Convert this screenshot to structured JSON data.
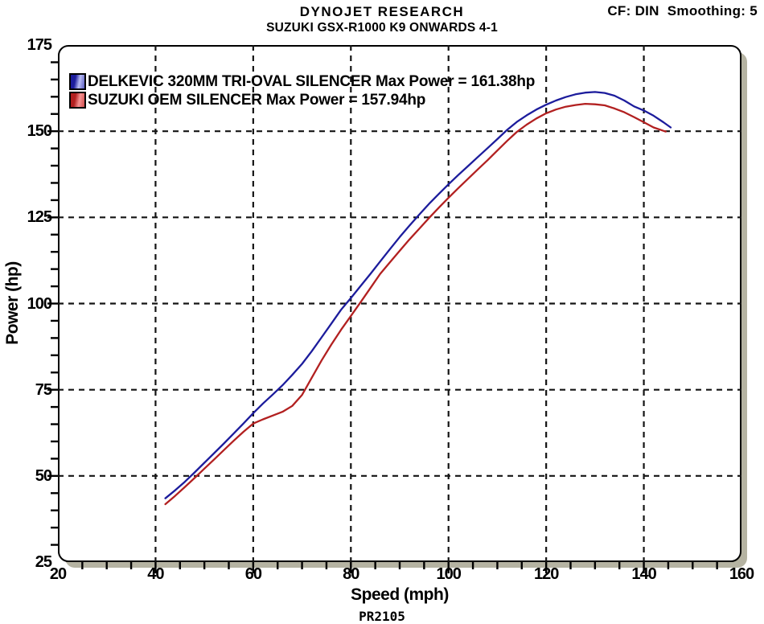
{
  "header": {
    "title_line1": "DYNOJET RESEARCH",
    "title_line2": "SUZUKI GSX-R1000 K9 ONWARDS 4-1",
    "correction_label": "CF: DIN  Smoothing: 5"
  },
  "legend": {
    "position": "top-left",
    "items": [
      {
        "label": "DELKEVIC 320MM TRI-OVAL SILENCER Max Power = 161.38hp",
        "color": "#1c1c9c",
        "color_light": "#b9bdf5"
      },
      {
        "label": "SUZUKI OEM SILENCER Max Power = 157.94hp",
        "color": "#b22020",
        "color_light": "#f69292"
      }
    ]
  },
  "footer": {
    "run_code": "PR2105"
  },
  "chart_data": {
    "type": "line",
    "title": "DYNOJET RESEARCH — SUZUKI GSX-R1000 K9 ONWARDS 4-1",
    "xlabel": "Speed (mph)",
    "ylabel": "Power (hp)",
    "xlim": [
      20,
      160
    ],
    "ylim": [
      25,
      175
    ],
    "x_major_ticks": [
      20,
      40,
      60,
      80,
      100,
      120,
      140,
      160
    ],
    "y_major_ticks": [
      25,
      50,
      75,
      100,
      125,
      150,
      175
    ],
    "x_minor_step": 5,
    "y_minor_step": 5,
    "x_grid": [
      40,
      60,
      80,
      100,
      120,
      140
    ],
    "y_grid": [
      50,
      75,
      100,
      125,
      150
    ],
    "grid_style": "dashed-black",
    "frame_shadow_color": "#b5b3a2",
    "series": [
      {
        "name": "DELKEVIC 320MM TRI-OVAL SILENCER",
        "max_power_hp": 161.38,
        "color": "#1c1c9c",
        "data_name": "delkevic-curve",
        "points": [
          [
            42,
            43.5
          ],
          [
            44,
            45.8
          ],
          [
            46,
            48.3
          ],
          [
            48,
            51.0
          ],
          [
            50,
            53.8
          ],
          [
            52,
            56.6
          ],
          [
            54,
            59.4
          ],
          [
            56,
            62.3
          ],
          [
            58,
            65.2
          ],
          [
            60,
            68.2
          ],
          [
            62,
            71.0
          ],
          [
            64,
            73.6
          ],
          [
            66,
            76.3
          ],
          [
            68,
            79.3
          ],
          [
            70,
            82.5
          ],
          [
            72,
            86.2
          ],
          [
            74,
            90.2
          ],
          [
            76,
            94.2
          ],
          [
            78,
            98.2
          ],
          [
            80,
            101.6
          ],
          [
            82,
            105.1
          ],
          [
            84,
            108.6
          ],
          [
            86,
            112.2
          ],
          [
            88,
            115.8
          ],
          [
            90,
            119.3
          ],
          [
            92,
            122.6
          ],
          [
            94,
            125.8
          ],
          [
            96,
            128.9
          ],
          [
            98,
            131.8
          ],
          [
            100,
            134.6
          ],
          [
            102,
            137.3
          ],
          [
            104,
            139.9
          ],
          [
            106,
            142.5
          ],
          [
            108,
            145.1
          ],
          [
            110,
            147.7
          ],
          [
            112,
            150.4
          ],
          [
            114,
            152.7
          ],
          [
            116,
            154.6
          ],
          [
            118,
            156.3
          ],
          [
            120,
            157.7
          ],
          [
            122,
            158.9
          ],
          [
            124,
            159.9
          ],
          [
            126,
            160.7
          ],
          [
            128,
            161.2
          ],
          [
            130,
            161.38
          ],
          [
            132,
            161.1
          ],
          [
            134,
            160.3
          ],
          [
            136,
            158.9
          ],
          [
            138,
            157.2
          ],
          [
            140,
            156.0
          ],
          [
            142,
            154.5
          ],
          [
            144,
            152.6
          ],
          [
            145.5,
            151.1
          ]
        ]
      },
      {
        "name": "SUZUKI OEM SILENCER",
        "max_power_hp": 157.94,
        "color": "#b22020",
        "data_name": "suzuki-oem-curve",
        "points": [
          [
            42,
            41.8
          ],
          [
            44,
            44.2
          ],
          [
            46,
            46.8
          ],
          [
            48,
            49.4
          ],
          [
            50,
            52.1
          ],
          [
            52,
            54.8
          ],
          [
            54,
            57.5
          ],
          [
            56,
            60.2
          ],
          [
            58,
            62.8
          ],
          [
            60,
            65.2
          ],
          [
            62,
            66.4
          ],
          [
            64,
            67.5
          ],
          [
            66,
            68.6
          ],
          [
            68,
            70.3
          ],
          [
            70,
            73.5
          ],
          [
            72,
            78.5
          ],
          [
            74,
            83.5
          ],
          [
            76,
            88.1
          ],
          [
            78,
            92.4
          ],
          [
            80,
            96.4
          ],
          [
            82,
            100.4
          ],
          [
            84,
            104.5
          ],
          [
            86,
            108.6
          ],
          [
            88,
            112.0
          ],
          [
            90,
            115.3
          ],
          [
            92,
            118.6
          ],
          [
            94,
            121.7
          ],
          [
            96,
            124.8
          ],
          [
            98,
            127.8
          ],
          [
            100,
            130.7
          ],
          [
            102,
            133.5
          ],
          [
            104,
            136.2
          ],
          [
            106,
            138.9
          ],
          [
            108,
            141.6
          ],
          [
            110,
            144.4
          ],
          [
            112,
            147.2
          ],
          [
            114,
            149.8
          ],
          [
            116,
            151.9
          ],
          [
            118,
            153.7
          ],
          [
            120,
            155.2
          ],
          [
            122,
            156.3
          ],
          [
            124,
            157.1
          ],
          [
            126,
            157.6
          ],
          [
            128,
            157.94
          ],
          [
            130,
            157.8
          ],
          [
            132,
            157.5
          ],
          [
            134,
            156.6
          ],
          [
            136,
            155.5
          ],
          [
            138,
            154.1
          ],
          [
            140,
            152.6
          ],
          [
            142,
            151.1
          ],
          [
            144,
            150.1
          ],
          [
            144.5,
            149.9
          ]
        ]
      }
    ]
  }
}
